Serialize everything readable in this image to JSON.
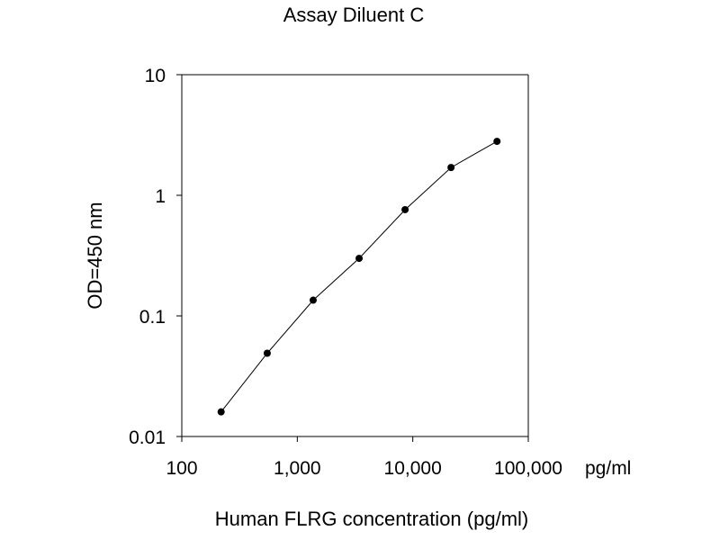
{
  "chart_data": {
    "type": "line",
    "title": "Assay Diluent C",
    "xlabel": "Human FLRG concentration (pg/ml)",
    "xunit": "pg/ml",
    "ylabel": "OD=450 nm",
    "xscale": "log",
    "yscale": "log",
    "xlim": [
      100,
      100000
    ],
    "ylim": [
      0.01,
      10
    ],
    "x_ticks": [
      {
        "value": 100,
        "label": "100"
      },
      {
        "value": 1000,
        "label": "1,000"
      },
      {
        "value": 10000,
        "label": "10,000"
      },
      {
        "value": 100000,
        "label": "100,000"
      }
    ],
    "y_ticks": [
      {
        "value": 0.01,
        "label": "0.01"
      },
      {
        "value": 0.1,
        "label": "0.1"
      },
      {
        "value": 1,
        "label": "1"
      },
      {
        "value": 10,
        "label": "10"
      }
    ],
    "grid": false,
    "series": [
      {
        "x": [
          219,
          549,
          1372,
          3430,
          8575,
          21438,
          53594
        ],
        "y": [
          0.016,
          0.049,
          0.135,
          0.3,
          0.76,
          1.7,
          2.8
        ]
      }
    ],
    "colors": {
      "line": "#000000",
      "marker": "#000000",
      "axis": "#000000"
    }
  }
}
